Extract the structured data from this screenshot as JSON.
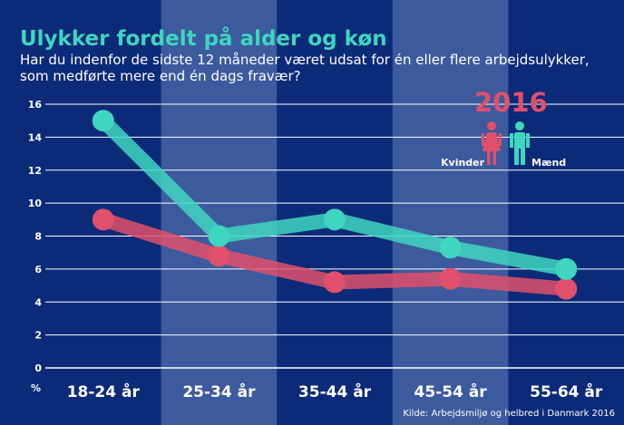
{
  "header": {
    "title": "Ulykker fordelt på alder og køn",
    "subtitle": "Har du indenfor de sidste 12 måneder været udsat for én eller flere arbejdsulykker, som medførte mere end én dags fravær?"
  },
  "legend": {
    "year": "2016",
    "women_label": "Kvinder",
    "men_label": "Mænd"
  },
  "source": "Kilde: Arbejdsmiljø og helbred i Danmark 2016",
  "colors": {
    "background": "#0b2a78",
    "band": "#3c5a9e",
    "men": "#3fd6bf",
    "women": "#e0506b",
    "grid": "#ffffff"
  },
  "chart_data": {
    "type": "line",
    "categories": [
      "18-24 år",
      "25-34 år",
      "35-44 år",
      "45-54 år",
      "55-64 år"
    ],
    "series": [
      {
        "name": "Mænd",
        "values": [
          15,
          8,
          9,
          7.3,
          6
        ]
      },
      {
        "name": "Kvinder",
        "values": [
          9,
          6.8,
          5.2,
          5.4,
          4.8
        ]
      }
    ],
    "ylabel": "%",
    "ylim": [
      0,
      16
    ],
    "yticks": [
      0,
      2,
      4,
      6,
      8,
      10,
      12,
      14,
      16
    ],
    "grid": true,
    "legend_position": "top-right"
  }
}
